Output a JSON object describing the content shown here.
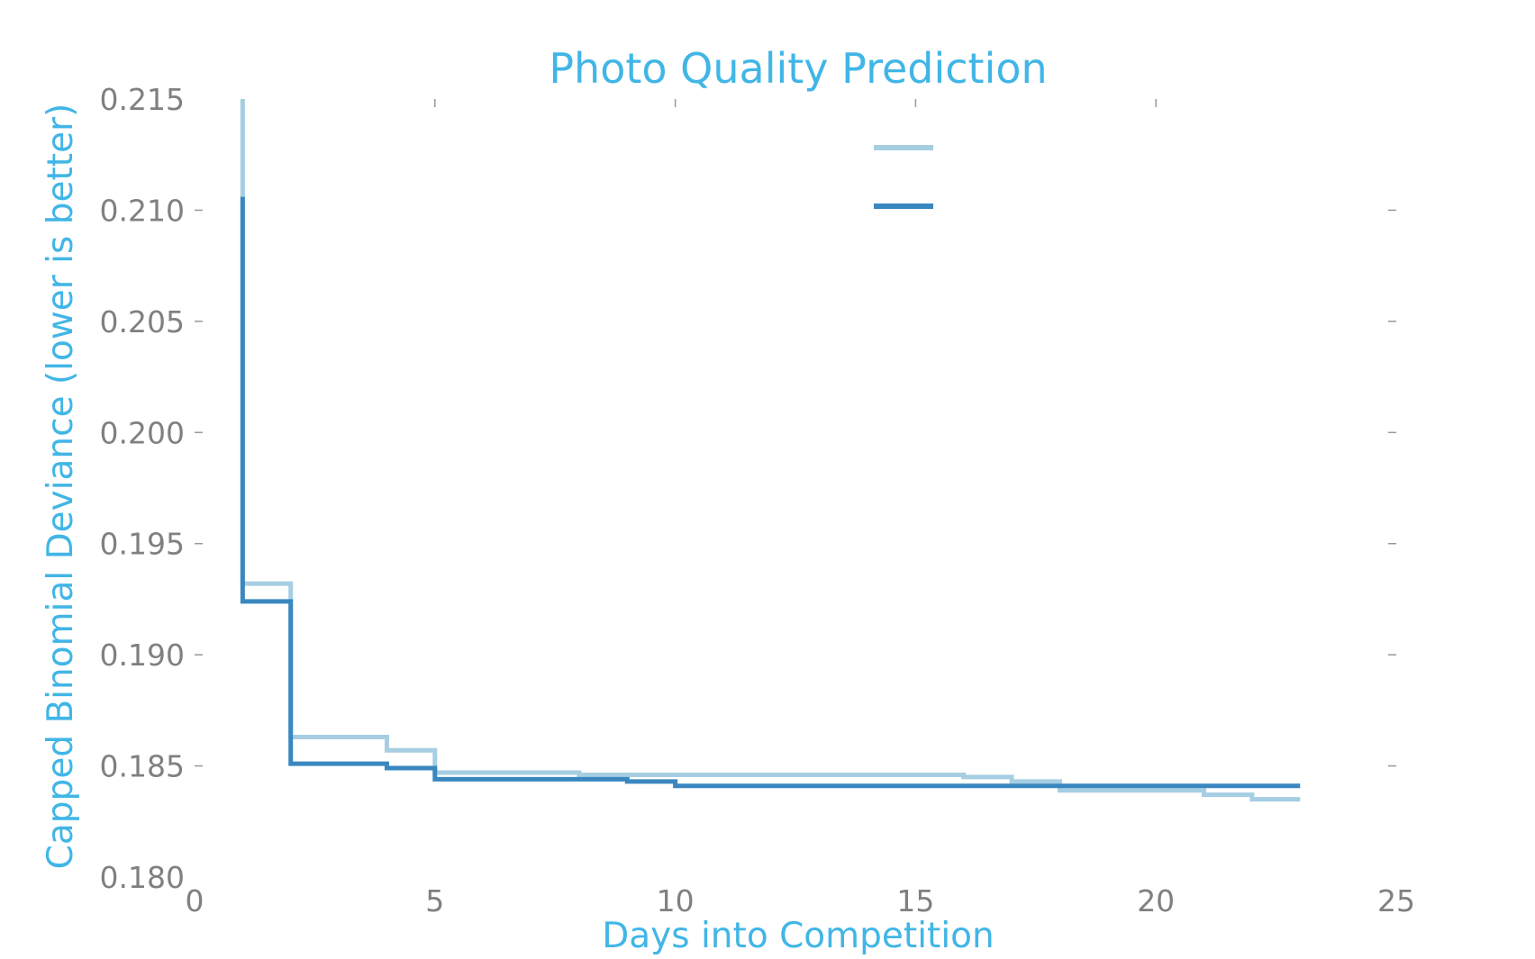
{
  "colors": {
    "accent": "#41b6e6",
    "tick_text": "#808080",
    "tick_mark": "#999999",
    "series_light": "#a6cee3",
    "series_dark": "#3a87c0"
  },
  "chart_data": {
    "type": "line",
    "step": "post",
    "title": "Photo Quality Prediction",
    "xlabel": "Days into Competition",
    "ylabel": "Capped Binomial Deviance (lower is better)",
    "xlim": [
      0,
      25
    ],
    "ylim": [
      0.18,
      0.215
    ],
    "x_ticks": [
      0,
      5,
      10,
      15,
      20,
      25
    ],
    "x_tick_labels": [
      "0",
      "5",
      "10",
      "15",
      "20",
      "25"
    ],
    "y_ticks": [
      0.18,
      0.185,
      0.19,
      0.195,
      0.2,
      0.205,
      0.21,
      0.215
    ],
    "y_tick_labels": [
      "0.180",
      "0.185",
      "0.190",
      "0.195",
      "0.200",
      "0.205",
      "0.210",
      "0.215"
    ],
    "grid": false,
    "legend_position": "top-center",
    "series": [
      {
        "color": "#a6cee3",
        "x": [
          1,
          1,
          2,
          4,
          5,
          8,
          16,
          17,
          18,
          21,
          22,
          23
        ],
        "y": [
          0.215,
          0.1932,
          0.1863,
          0.1857,
          0.1847,
          0.1846,
          0.1845,
          0.1843,
          0.1839,
          0.1837,
          0.1835,
          0.1835
        ]
      },
      {
        "color": "#3a87c0",
        "x": [
          1,
          1,
          2,
          4,
          5,
          6,
          9,
          10,
          23
        ],
        "y": [
          0.2106,
          0.1924,
          0.1851,
          0.1849,
          0.1844,
          0.1844,
          0.1843,
          0.1841,
          0.1841
        ]
      }
    ]
  }
}
